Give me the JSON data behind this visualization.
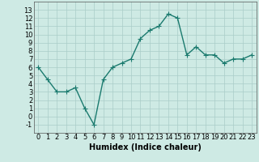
{
  "x": [
    0,
    1,
    2,
    3,
    4,
    5,
    6,
    7,
    8,
    9,
    10,
    11,
    12,
    13,
    14,
    15,
    16,
    17,
    18,
    19,
    20,
    21,
    22,
    23
  ],
  "y": [
    6,
    4.5,
    3,
    3,
    3.5,
    1,
    -1,
    4.5,
    6,
    6.5,
    7,
    9.5,
    10.5,
    11,
    12.5,
    12,
    7.5,
    8.5,
    7.5,
    7.5,
    6.5,
    7,
    7,
    7.5
  ],
  "line_color": "#1a7a6e",
  "marker": "+",
  "marker_size": 4,
  "bg_color": "#ceeae4",
  "grid_color": "#aacdc8",
  "xlabel": "Humidex (Indice chaleur)",
  "xlabel_fontsize": 7,
  "xlim": [
    -0.5,
    23.5
  ],
  "ylim": [
    -2,
    14
  ],
  "yticks": [
    -1,
    0,
    1,
    2,
    3,
    4,
    5,
    6,
    7,
    8,
    9,
    10,
    11,
    12,
    13
  ],
  "xticks": [
    0,
    1,
    2,
    3,
    4,
    5,
    6,
    7,
    8,
    9,
    10,
    11,
    12,
    13,
    14,
    15,
    16,
    17,
    18,
    19,
    20,
    21,
    22,
    23
  ],
  "tick_fontsize": 6,
  "line_width": 1.0
}
